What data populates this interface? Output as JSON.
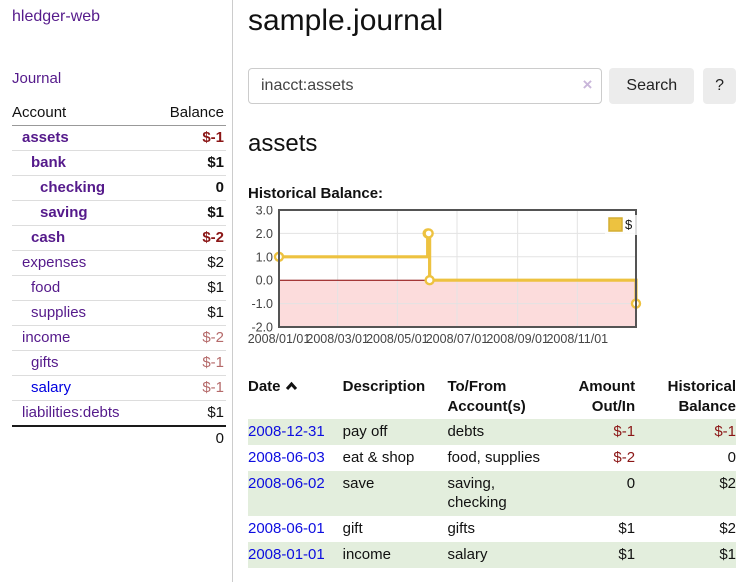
{
  "app": {
    "title": "hledger-web"
  },
  "sidebar": {
    "journal_link": "Journal",
    "accounts_table": {
      "account_header": "Account",
      "balance_header": "Balance",
      "rows": [
        {
          "name": "assets",
          "balance": "$-1",
          "depth": 0,
          "bold": true,
          "tone": "neg-strong",
          "link": "purple"
        },
        {
          "name": "bank",
          "balance": "$1",
          "depth": 1,
          "bold": true,
          "tone": "pos",
          "link": "purple"
        },
        {
          "name": "checking",
          "balance": "0",
          "depth": 2,
          "bold": true,
          "tone": "pos",
          "link": "purple"
        },
        {
          "name": "saving",
          "balance": "$1",
          "depth": 2,
          "bold": true,
          "tone": "pos",
          "link": "purple"
        },
        {
          "name": "cash",
          "balance": "$-2",
          "depth": 1,
          "bold": true,
          "tone": "neg-strong",
          "link": "purple"
        },
        {
          "name": "expenses",
          "balance": "$2",
          "depth": 0,
          "bold": false,
          "tone": "pos",
          "link": "purple"
        },
        {
          "name": "food",
          "balance": "$1",
          "depth": 1,
          "bold": false,
          "tone": "pos",
          "link": "purple"
        },
        {
          "name": "supplies",
          "balance": "$1",
          "depth": 1,
          "bold": false,
          "tone": "pos",
          "link": "purple"
        },
        {
          "name": "income",
          "balance": "$-2",
          "depth": 0,
          "bold": false,
          "tone": "neg-soft",
          "link": "purple"
        },
        {
          "name": "gifts",
          "balance": "$-1",
          "depth": 1,
          "bold": false,
          "tone": "neg-soft",
          "link": "purple"
        },
        {
          "name": "salary",
          "balance": "$-1",
          "depth": 1,
          "bold": false,
          "tone": "neg-soft",
          "link": "blue"
        },
        {
          "name": "liabilities:debts",
          "balance": "$1",
          "depth": 0,
          "bold": false,
          "tone": "pos",
          "link": "purple"
        }
      ],
      "total": "0"
    }
  },
  "main": {
    "title": "sample.journal",
    "search": {
      "value": "inacct:assets",
      "clear_icon": "×",
      "search_button": "Search",
      "help_button": "?"
    },
    "account_heading": "assets",
    "chart_label": "Historical Balance:"
  },
  "chart_data": {
    "type": "line",
    "title": "Historical Balance",
    "step": true,
    "legend": "$",
    "legend_position": "top-right",
    "series": [
      {
        "name": "$",
        "color": "#edc240",
        "points": [
          [
            "2008-01-01",
            1
          ],
          [
            "2008-06-01",
            2
          ],
          [
            "2008-06-02",
            2
          ],
          [
            "2008-06-03",
            0
          ],
          [
            "2008-12-31",
            -1
          ]
        ]
      }
    ],
    "x_start": "2008-01-01",
    "x_end": "2008-12-31",
    "x_ticks": [
      "2008/01/01",
      "2008/03/01",
      "2008/05/01",
      "2008/07/01",
      "2008/09/01",
      "2008/11/01"
    ],
    "y_ticks": [
      "3.0",
      "2.0",
      "1.0",
      "0.0",
      "-1.0",
      "-2.0"
    ],
    "ylim": [
      -2,
      3
    ],
    "grid": true,
    "negative_region_color": "#fcdcdc",
    "zero_line_color": "#8b0000",
    "border_color": "#545454",
    "grid_color": "#e3e3e3"
  },
  "register_table": {
    "headers": {
      "date": "Date",
      "description": "Description",
      "accounts": "To/From\nAccount(s)",
      "amount": "Amount\nOut/In",
      "balance": "Historical\nBalance"
    },
    "rows": [
      {
        "date": "2008-12-31",
        "description": "pay off",
        "accounts": "debts",
        "amount": "$-1",
        "amount_neg": true,
        "balance": "$-1",
        "balance_neg": true
      },
      {
        "date": "2008-06-03",
        "description": "eat & shop",
        "accounts": "food, supplies",
        "amount": "$-2",
        "amount_neg": true,
        "balance": "0",
        "balance_neg": false
      },
      {
        "date": "2008-06-02",
        "description": "save",
        "accounts": "saving,\nchecking",
        "amount": "0",
        "amount_neg": false,
        "balance": "$2",
        "balance_neg": false
      },
      {
        "date": "2008-06-01",
        "description": "gift",
        "accounts": "gifts",
        "amount": "$1",
        "amount_neg": false,
        "balance": "$2",
        "balance_neg": false
      },
      {
        "date": "2008-01-01",
        "description": "income",
        "accounts": "salary",
        "amount": "$1",
        "amount_neg": false,
        "balance": "$1",
        "balance_neg": false
      }
    ]
  }
}
